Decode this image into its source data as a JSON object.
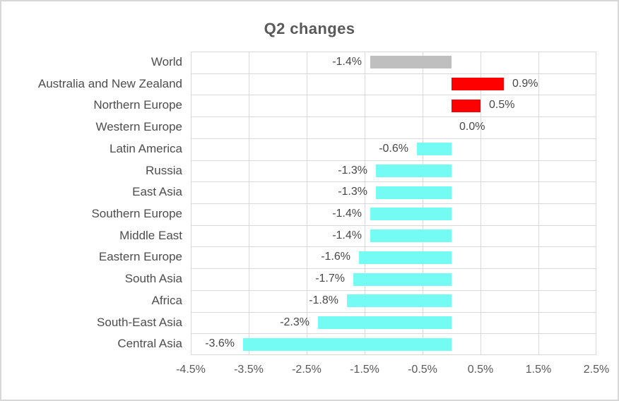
{
  "window": {
    "background": "#FFFFFF",
    "border_color": "#D8D8D8"
  },
  "chart_data": {
    "type": "bar",
    "orientation": "horizontal",
    "title": "Q2 changes",
    "categories": [
      "World",
      "Australia and New Zealand",
      "Northern Europe",
      "Western Europe",
      "Latin America",
      "Russia",
      "East Asia",
      "Southern Europe",
      "Middle East",
      "Eastern Europe",
      "South Asia",
      "Africa",
      "South-East Asia",
      "Central Asia"
    ],
    "values": [
      -1.4,
      0.9,
      0.5,
      0.0,
      -0.6,
      -1.3,
      -1.3,
      -1.4,
      -1.4,
      -1.6,
      -1.7,
      -1.8,
      -2.3,
      -3.6
    ],
    "display_labels": [
      "-1.4%",
      "0.9%",
      "0.5%",
      "0.0%",
      "-0.6%",
      "-1.3%",
      "-1.3%",
      "-1.4%",
      "-1.4%",
      "-1.6%",
      "-1.7%",
      "-1.8%",
      "-2.3%",
      "-3.6%"
    ],
    "bar_colors": [
      "#BFBFBF",
      "#FF0000",
      "#FF0000",
      "#FF0000",
      "#73FBF4",
      "#73FBF4",
      "#73FBF4",
      "#73FBF4",
      "#73FBF4",
      "#73FBF4",
      "#73FBF4",
      "#73FBF4",
      "#73FBF4",
      "#73FBF4"
    ],
    "x_ticks": [
      "-4.5%",
      "-3.5%",
      "-2.5%",
      "-1.5%",
      "-0.5%",
      "0.5%",
      "1.5%",
      "2.5%"
    ],
    "x_tick_values": [
      -4.5,
      -3.5,
      -2.5,
      -1.5,
      -0.5,
      0.5,
      1.5,
      2.5
    ],
    "xlim": [
      -4.5,
      2.5
    ],
    "xlabel": "",
    "ylabel": "",
    "grid": true,
    "legend": null,
    "colors": {
      "world_bar": "#BFBFBF",
      "positive_bar": "#FF0000",
      "negative_bar": "#73FBF4",
      "gridline": "#D9D9D9",
      "title_text": "#595959",
      "category_text": "#4D4D4D",
      "data_label_text": "#474747",
      "axis_text": "#595959"
    }
  }
}
